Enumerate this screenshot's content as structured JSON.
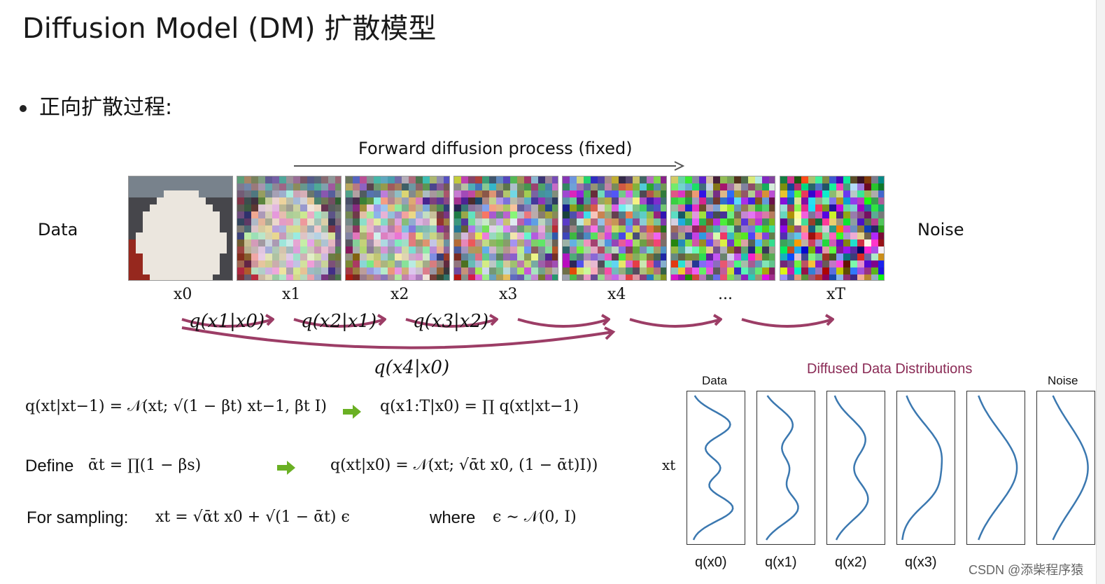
{
  "title": "Diffusion Model (DM) 扩散模型",
  "bullet": "正向扩散过程:",
  "forward_label": "Forward diffusion process (fixed)",
  "side_left": "Data",
  "side_right": "Noise",
  "image_labels": [
    "x0",
    "x1",
    "x2",
    "x3",
    "x4",
    "...",
    "xT"
  ],
  "noise_levels": [
    0.0,
    0.35,
    0.5,
    0.62,
    0.74,
    0.86,
    1.0
  ],
  "transition_labels": [
    "q(x1|x0)",
    "q(x2|x1)",
    "q(x3|x2)"
  ],
  "skip_label": "q(x4|x0)",
  "equations": {
    "eq1_left": "q(xt|xt−1) = 𝒩(xt; √(1 − βt) xt−1, βt I)",
    "eq1_right": "q(x1:T|x0) = ∏ q(xt|xt−1)",
    "define_label": "Define",
    "eq2_left": "ᾱt = ∏(1 − βs)",
    "eq2_right": "q(xt|x0) = 𝒩(xt; √ᾱt x0, (1 − ᾱt)I))",
    "sampling_label": "For sampling:",
    "eq3": "xt = √ᾱt x0 + √(1 − ᾱt) ϵ",
    "where_label": "where",
    "eq4": "ϵ ∼ 𝒩(0, I)",
    "xt_side": "xt"
  },
  "dist_panel": {
    "title": "Diffused Data Distributions",
    "data_label": "Data",
    "noise_label": "Noise",
    "q_labels": [
      "q(x0)",
      "q(x1)",
      "q(x2)",
      "q(x3)",
      "",
      ""
    ]
  },
  "watermark": "CSDN @添柴程序猿",
  "colors": {
    "arrow": "#9c3d66",
    "curve": "#3b78b0",
    "green": "#6ab023"
  }
}
